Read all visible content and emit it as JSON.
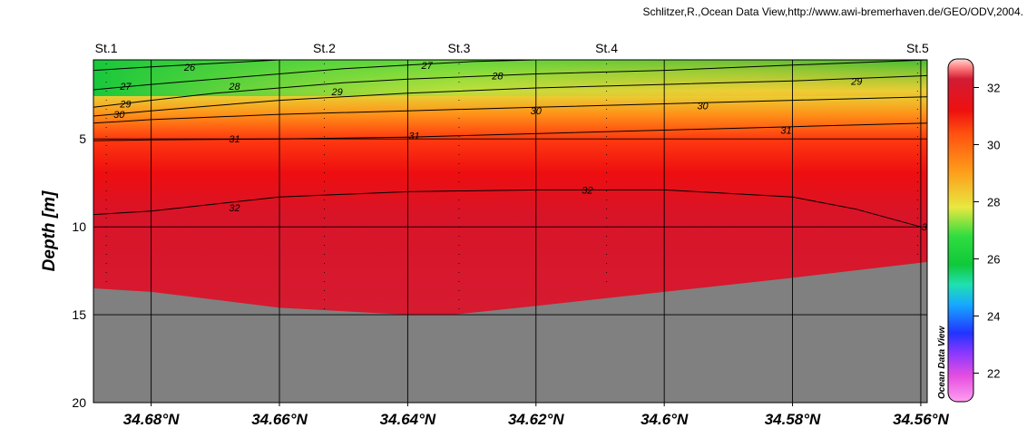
{
  "credit": "Schlitzer,R.,Ocean Data View,http://www.awi-bremerhaven.de/GEO/ODV,2004.",
  "watermark": "Ocean Data View",
  "chart_data": {
    "type": "heatmap",
    "variable_description": "Section plot of salinity-like field with contour lines",
    "xlabel": "",
    "ylabel": "Depth [m]",
    "x_ticks": [
      "34.68°N",
      "34.66°N",
      "34.64°N",
      "34.62°N",
      "34.6°N",
      "34.58°N",
      "34.56°N"
    ],
    "x_tick_values": [
      34.68,
      34.66,
      34.64,
      34.62,
      34.6,
      34.58,
      34.56
    ],
    "xlim": [
      34.689,
      34.559
    ],
    "y_ticks": [
      "5",
      "10",
      "15",
      "20"
    ],
    "y_tick_values": [
      5,
      10,
      15,
      20
    ],
    "ylim": [
      0.5,
      20
    ],
    "y_inverted": true,
    "grid": true,
    "stations": [
      {
        "name": "St.1",
        "lat": 34.687,
        "max_depth": 13.5
      },
      {
        "name": "St.2",
        "lat": 34.653,
        "max_depth": 14.8
      },
      {
        "name": "St.3",
        "lat": 34.632,
        "max_depth": 15.0
      },
      {
        "name": "St.4",
        "lat": 34.609,
        "max_depth": 13.5
      },
      {
        "name": "St.5",
        "lat": 34.5605,
        "max_depth": 12.0
      }
    ],
    "seafloor": [
      [
        34.689,
        13.5
      ],
      [
        34.68,
        13.7
      ],
      [
        34.66,
        14.6
      ],
      [
        34.64,
        15.0
      ],
      [
        34.633,
        15.0
      ],
      [
        34.62,
        14.5
      ],
      [
        34.6,
        13.7
      ],
      [
        34.58,
        12.9
      ],
      [
        34.559,
        12.0
      ]
    ],
    "contours": [
      {
        "level": "26",
        "points": [
          [
            34.689,
            1.1
          ],
          [
            34.68,
            0.9
          ],
          [
            34.67,
            0.7
          ],
          [
            34.66,
            0.5
          ]
        ],
        "labels": [
          [
            34.674,
            0.9
          ]
        ]
      },
      {
        "level": "27",
        "points": [
          [
            34.689,
            2.2
          ],
          [
            34.68,
            1.9
          ],
          [
            34.67,
            1.6
          ],
          [
            34.66,
            1.3
          ],
          [
            34.65,
            1.0
          ],
          [
            34.64,
            0.8
          ],
          [
            34.63,
            0.6
          ],
          [
            34.62,
            0.5
          ]
        ],
        "labels": [
          [
            34.684,
            2.0
          ],
          [
            34.637,
            0.8
          ]
        ]
      },
      {
        "level": "28",
        "points": [
          [
            34.689,
            3.2
          ],
          [
            34.68,
            2.8
          ],
          [
            34.67,
            2.4
          ],
          [
            34.66,
            2.1
          ],
          [
            34.65,
            1.8
          ],
          [
            34.64,
            1.6
          ],
          [
            34.62,
            1.3
          ],
          [
            34.6,
            1.1
          ],
          [
            34.58,
            0.8
          ],
          [
            34.559,
            0.5
          ]
        ],
        "labels": [
          [
            34.667,
            2.0
          ],
          [
            34.626,
            1.4
          ]
        ]
      },
      {
        "level": "29",
        "points": [
          [
            34.689,
            3.7
          ],
          [
            34.68,
            3.4
          ],
          [
            34.67,
            3.1
          ],
          [
            34.66,
            2.8
          ],
          [
            34.64,
            2.4
          ],
          [
            34.62,
            2.1
          ],
          [
            34.6,
            1.9
          ],
          [
            34.58,
            1.7
          ],
          [
            34.559,
            1.4
          ]
        ],
        "labels": [
          [
            34.684,
            3.0
          ],
          [
            34.651,
            2.3
          ],
          [
            34.57,
            1.7
          ]
        ]
      },
      {
        "level": "30",
        "points": [
          [
            34.689,
            4.1
          ],
          [
            34.68,
            3.9
          ],
          [
            34.66,
            3.6
          ],
          [
            34.64,
            3.4
          ],
          [
            34.62,
            3.2
          ],
          [
            34.6,
            3.0
          ],
          [
            34.58,
            2.8
          ],
          [
            34.559,
            2.6
          ]
        ],
        "labels": [
          [
            34.685,
            3.6
          ],
          [
            34.62,
            3.4
          ],
          [
            34.594,
            3.1
          ]
        ]
      },
      {
        "level": "31",
        "points": [
          [
            34.689,
            5.1
          ],
          [
            34.68,
            5.05
          ],
          [
            34.66,
            5.0
          ],
          [
            34.64,
            4.9
          ],
          [
            34.62,
            4.7
          ],
          [
            34.6,
            4.5
          ],
          [
            34.58,
            4.3
          ],
          [
            34.559,
            4.1
          ]
        ],
        "labels": [
          [
            34.667,
            5.0
          ],
          [
            34.639,
            4.8
          ],
          [
            34.581,
            4.5
          ]
        ]
      },
      {
        "level": "32",
        "points": [
          [
            34.689,
            9.3
          ],
          [
            34.68,
            9.1
          ],
          [
            34.67,
            8.7
          ],
          [
            34.66,
            8.3
          ],
          [
            34.64,
            8.0
          ],
          [
            34.62,
            7.9
          ],
          [
            34.6,
            7.9
          ],
          [
            34.58,
            8.3
          ],
          [
            34.57,
            9.0
          ],
          [
            34.56,
            10.0
          ]
        ],
        "labels": [
          [
            34.667,
            8.9
          ],
          [
            34.612,
            7.9
          ],
          [
            34.559,
            10.0
          ]
        ]
      }
    ],
    "colorbar": {
      "ticks": [
        "22",
        "24",
        "26",
        "28",
        "30",
        "32"
      ],
      "tick_values": [
        22,
        24,
        26,
        28,
        30,
        32
      ],
      "range": [
        21,
        33
      ],
      "stops": [
        {
          "value": 21.0,
          "color": "#ff9ff0"
        },
        {
          "value": 21.9,
          "color": "#e44ee0"
        },
        {
          "value": 22.7,
          "color": "#8a38ff"
        },
        {
          "value": 23.4,
          "color": "#2233ff"
        },
        {
          "value": 24.4,
          "color": "#17a9ff"
        },
        {
          "value": 25.1,
          "color": "#20e0b0"
        },
        {
          "value": 25.8,
          "color": "#10c83a"
        },
        {
          "value": 26.8,
          "color": "#30dd40"
        },
        {
          "value": 27.8,
          "color": "#e8e840"
        },
        {
          "value": 29.1,
          "color": "#ff9a1a"
        },
        {
          "value": 30.4,
          "color": "#ff5010"
        },
        {
          "value": 31.2,
          "color": "#ee1010"
        },
        {
          "value": 32.3,
          "color": "#d21c34"
        },
        {
          "value": 32.7,
          "color": "#ff8080"
        },
        {
          "value": 33.0,
          "color": "#ffd8d8"
        }
      ]
    }
  }
}
